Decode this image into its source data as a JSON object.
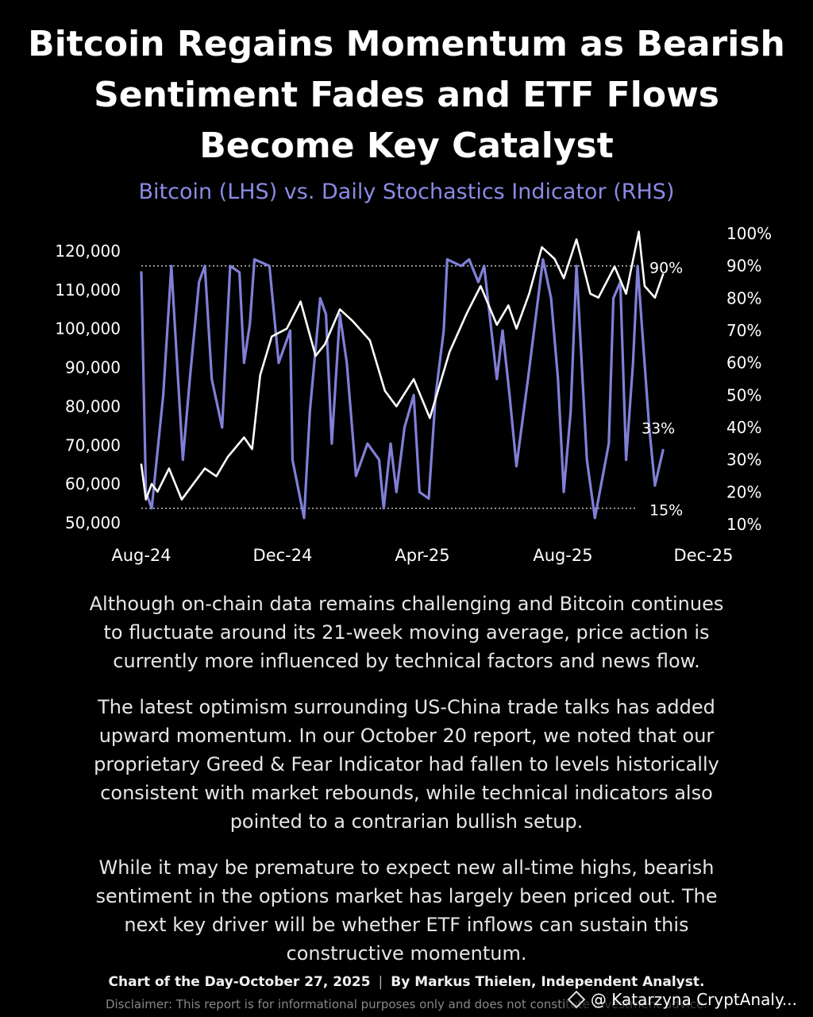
{
  "title_lines": [
    "Bitcoin Regains Momentum as Bearish",
    "Sentiment Fades and ETF Flows",
    "Become Key Catalyst"
  ],
  "subtitle": "Bitcoin (LHS) vs. Daily Stochastics Indicator (RHS)",
  "colors": {
    "background": "#000000",
    "bitcoin_line": "#ffffff",
    "stochastics_line": "#8080d8",
    "subtitle": "#8b8be6"
  },
  "chart_data": {
    "type": "line",
    "x_tick_labels": [
      "Aug-24",
      "Dec-24",
      "Apr-25",
      "Aug-25",
      "Dec-25"
    ],
    "xlim": [
      "2024-08-01",
      "2025-12-01"
    ],
    "y_left": {
      "ylim": [
        50000,
        120000
      ],
      "tick_values": [
        50000,
        60000,
        70000,
        80000,
        90000,
        100000,
        110000,
        120000
      ],
      "tick_labels": [
        "50,000",
        "60,000",
        "70,000",
        "80,000",
        "90,000",
        "100,000",
        "110,000",
        "120,000"
      ]
    },
    "y_right": {
      "ylim": [
        10,
        100
      ],
      "tick_values": [
        10,
        20,
        30,
        40,
        50,
        60,
        70,
        80,
        90,
        100
      ],
      "tick_labels": [
        "10%",
        "20%",
        "30%",
        "40%",
        "50%",
        "60%",
        "70%",
        "80%",
        "90%",
        "100%"
      ]
    },
    "reference_lines": [
      {
        "value": 90,
        "axis": "right",
        "label": "90%",
        "style": "dotted"
      },
      {
        "value": 15,
        "axis": "right",
        "label": "15%",
        "style": "dotted"
      }
    ],
    "annotations": [
      {
        "label": "33%",
        "axis": "right",
        "value": 33
      }
    ],
    "grid": false,
    "series": [
      {
        "id": "bitcoin",
        "axis": "left",
        "points": [
          [
            "2024-08-01",
            65000
          ],
          [
            "2024-08-05",
            56000
          ],
          [
            "2024-08-10",
            60000
          ],
          [
            "2024-08-15",
            58000
          ],
          [
            "2024-08-25",
            64000
          ],
          [
            "2024-09-05",
            56000
          ],
          [
            "2024-09-15",
            60000
          ],
          [
            "2024-09-25",
            64000
          ],
          [
            "2024-10-05",
            62000
          ],
          [
            "2024-10-15",
            67000
          ],
          [
            "2024-10-29",
            72000
          ],
          [
            "2024-11-05",
            69000
          ],
          [
            "2024-11-12",
            88000
          ],
          [
            "2024-11-22",
            98000
          ],
          [
            "2024-12-05",
            100000
          ],
          [
            "2024-12-17",
            107000
          ],
          [
            "2024-12-30",
            93000
          ],
          [
            "2025-01-07",
            96000
          ],
          [
            "2025-01-20",
            105000
          ],
          [
            "2025-01-31",
            102000
          ],
          [
            "2025-02-15",
            97000
          ],
          [
            "2025-02-28",
            84000
          ],
          [
            "2025-03-10",
            80000
          ],
          [
            "2025-03-25",
            87000
          ],
          [
            "2025-04-08",
            77000
          ],
          [
            "2025-04-15",
            84000
          ],
          [
            "2025-04-25",
            94000
          ],
          [
            "2025-05-10",
            104000
          ],
          [
            "2025-05-22",
            111000
          ],
          [
            "2025-06-05",
            101000
          ],
          [
            "2025-06-15",
            106000
          ],
          [
            "2025-06-22",
            100000
          ],
          [
            "2025-07-03",
            109000
          ],
          [
            "2025-07-14",
            121000
          ],
          [
            "2025-07-25",
            118000
          ],
          [
            "2025-08-02",
            113000
          ],
          [
            "2025-08-13",
            123000
          ],
          [
            "2025-08-25",
            109000
          ],
          [
            "2025-09-01",
            108000
          ],
          [
            "2025-09-15",
            116000
          ],
          [
            "2025-09-25",
            109000
          ],
          [
            "2025-10-06",
            125000
          ],
          [
            "2025-10-11",
            111000
          ],
          [
            "2025-10-20",
            108000
          ],
          [
            "2025-10-27",
            114000
          ]
        ]
      },
      {
        "id": "stochastics",
        "axis": "right",
        "points": [
          [
            "2024-08-01",
            88
          ],
          [
            "2024-08-05",
            20
          ],
          [
            "2024-08-10",
            15
          ],
          [
            "2024-08-20",
            50
          ],
          [
            "2024-08-27",
            90
          ],
          [
            "2024-09-06",
            30
          ],
          [
            "2024-09-12",
            55
          ],
          [
            "2024-09-20",
            85
          ],
          [
            "2024-09-25",
            90
          ],
          [
            "2024-10-01",
            55
          ],
          [
            "2024-10-10",
            40
          ],
          [
            "2024-10-17",
            90
          ],
          [
            "2024-10-25",
            88
          ],
          [
            "2024-10-29",
            60
          ],
          [
            "2024-11-03",
            72
          ],
          [
            "2024-11-07",
            92
          ],
          [
            "2024-11-20",
            90
          ],
          [
            "2024-11-28",
            60
          ],
          [
            "2024-12-08",
            70
          ],
          [
            "2024-12-10",
            30
          ],
          [
            "2024-12-20",
            12
          ],
          [
            "2024-12-25",
            45
          ],
          [
            "2025-01-03",
            80
          ],
          [
            "2025-01-08",
            75
          ],
          [
            "2025-01-13",
            35
          ],
          [
            "2025-01-20",
            75
          ],
          [
            "2025-01-26",
            60
          ],
          [
            "2025-02-03",
            25
          ],
          [
            "2025-02-13",
            35
          ],
          [
            "2025-02-23",
            30
          ],
          [
            "2025-02-27",
            15
          ],
          [
            "2025-03-05",
            35
          ],
          [
            "2025-03-10",
            20
          ],
          [
            "2025-03-17",
            40
          ],
          [
            "2025-03-25",
            50
          ],
          [
            "2025-03-30",
            20
          ],
          [
            "2025-04-07",
            18
          ],
          [
            "2025-04-13",
            50
          ],
          [
            "2025-04-20",
            70
          ],
          [
            "2025-04-23",
            92
          ],
          [
            "2025-05-05",
            90
          ],
          [
            "2025-05-12",
            92
          ],
          [
            "2025-05-20",
            85
          ],
          [
            "2025-05-25",
            90
          ],
          [
            "2025-06-05",
            55
          ],
          [
            "2025-06-10",
            70
          ],
          [
            "2025-06-16",
            50
          ],
          [
            "2025-06-22",
            28
          ],
          [
            "2025-07-02",
            55
          ],
          [
            "2025-07-15",
            92
          ],
          [
            "2025-07-22",
            80
          ],
          [
            "2025-07-28",
            55
          ],
          [
            "2025-08-02",
            20
          ],
          [
            "2025-08-08",
            45
          ],
          [
            "2025-08-13",
            90
          ],
          [
            "2025-08-22",
            30
          ],
          [
            "2025-08-29",
            12
          ],
          [
            "2025-09-10",
            35
          ],
          [
            "2025-09-14",
            80
          ],
          [
            "2025-09-20",
            85
          ],
          [
            "2025-09-25",
            30
          ],
          [
            "2025-10-01",
            60
          ],
          [
            "2025-10-05",
            90
          ],
          [
            "2025-10-09",
            70
          ],
          [
            "2025-10-15",
            40
          ],
          [
            "2025-10-20",
            22
          ],
          [
            "2025-10-27",
            33
          ]
        ]
      }
    ]
  },
  "paragraphs": [
    [
      "Although on-chain data remains challenging and Bitcoin continues",
      "to fluctuate around its 21-week moving average, price action is",
      "currently more influenced by technical factors and news flow."
    ],
    [
      "The latest optimism surrounding US-China trade talks has added",
      "upward momentum. In our October 20 report, we noted that our",
      "proprietary Greed & Fear Indicator had fallen to levels historically",
      "consistent with market rebounds, while technical indicators also",
      "pointed to a contrarian bullish setup."
    ],
    [
      "While it may be premature to expect new all-time highs, bearish",
      "sentiment in the options market has largely been priced out. The",
      "next key driver will be whether ETF inflows can sustain this",
      "constructive momentum."
    ]
  ],
  "footer": {
    "left": "Chart of the Day-October 27, 2025",
    "separator": "|",
    "right": "By Markus Thielen, Independent Analyst."
  },
  "disclaimer": "Disclaimer: This report is for informational purposes only and does not constitute investment advice.",
  "watermark": {
    "icon": "binance-square-icon",
    "text": "@ Katarzyna CryptAnaly..."
  }
}
